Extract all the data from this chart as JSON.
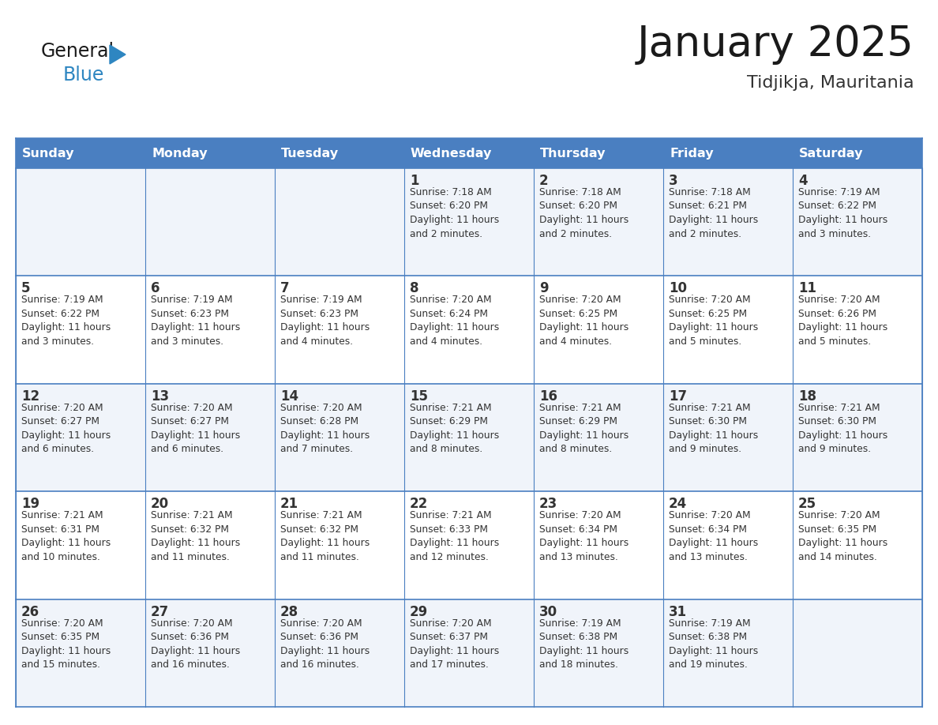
{
  "title": "January 2025",
  "subtitle": "Tidjikja, Mauritania",
  "header_color": "#4a7fc1",
  "header_text_color": "#FFFFFF",
  "cell_bg_odd": "#f0f4fa",
  "cell_bg_even": "#FFFFFF",
  "border_color": "#4a7fc1",
  "title_color": "#1a1a1a",
  "subtitle_color": "#333333",
  "text_color": "#333333",
  "day_names": [
    "Sunday",
    "Monday",
    "Tuesday",
    "Wednesday",
    "Thursday",
    "Friday",
    "Saturday"
  ],
  "weeks": [
    [
      {
        "day": "",
        "info": ""
      },
      {
        "day": "",
        "info": ""
      },
      {
        "day": "",
        "info": ""
      },
      {
        "day": "1",
        "info": "Sunrise: 7:18 AM\nSunset: 6:20 PM\nDaylight: 11 hours\nand 2 minutes."
      },
      {
        "day": "2",
        "info": "Sunrise: 7:18 AM\nSunset: 6:20 PM\nDaylight: 11 hours\nand 2 minutes."
      },
      {
        "day": "3",
        "info": "Sunrise: 7:18 AM\nSunset: 6:21 PM\nDaylight: 11 hours\nand 2 minutes."
      },
      {
        "day": "4",
        "info": "Sunrise: 7:19 AM\nSunset: 6:22 PM\nDaylight: 11 hours\nand 3 minutes."
      }
    ],
    [
      {
        "day": "5",
        "info": "Sunrise: 7:19 AM\nSunset: 6:22 PM\nDaylight: 11 hours\nand 3 minutes."
      },
      {
        "day": "6",
        "info": "Sunrise: 7:19 AM\nSunset: 6:23 PM\nDaylight: 11 hours\nand 3 minutes."
      },
      {
        "day": "7",
        "info": "Sunrise: 7:19 AM\nSunset: 6:23 PM\nDaylight: 11 hours\nand 4 minutes."
      },
      {
        "day": "8",
        "info": "Sunrise: 7:20 AM\nSunset: 6:24 PM\nDaylight: 11 hours\nand 4 minutes."
      },
      {
        "day": "9",
        "info": "Sunrise: 7:20 AM\nSunset: 6:25 PM\nDaylight: 11 hours\nand 4 minutes."
      },
      {
        "day": "10",
        "info": "Sunrise: 7:20 AM\nSunset: 6:25 PM\nDaylight: 11 hours\nand 5 minutes."
      },
      {
        "day": "11",
        "info": "Sunrise: 7:20 AM\nSunset: 6:26 PM\nDaylight: 11 hours\nand 5 minutes."
      }
    ],
    [
      {
        "day": "12",
        "info": "Sunrise: 7:20 AM\nSunset: 6:27 PM\nDaylight: 11 hours\nand 6 minutes."
      },
      {
        "day": "13",
        "info": "Sunrise: 7:20 AM\nSunset: 6:27 PM\nDaylight: 11 hours\nand 6 minutes."
      },
      {
        "day": "14",
        "info": "Sunrise: 7:20 AM\nSunset: 6:28 PM\nDaylight: 11 hours\nand 7 minutes."
      },
      {
        "day": "15",
        "info": "Sunrise: 7:21 AM\nSunset: 6:29 PM\nDaylight: 11 hours\nand 8 minutes."
      },
      {
        "day": "16",
        "info": "Sunrise: 7:21 AM\nSunset: 6:29 PM\nDaylight: 11 hours\nand 8 minutes."
      },
      {
        "day": "17",
        "info": "Sunrise: 7:21 AM\nSunset: 6:30 PM\nDaylight: 11 hours\nand 9 minutes."
      },
      {
        "day": "18",
        "info": "Sunrise: 7:21 AM\nSunset: 6:30 PM\nDaylight: 11 hours\nand 9 minutes."
      }
    ],
    [
      {
        "day": "19",
        "info": "Sunrise: 7:21 AM\nSunset: 6:31 PM\nDaylight: 11 hours\nand 10 minutes."
      },
      {
        "day": "20",
        "info": "Sunrise: 7:21 AM\nSunset: 6:32 PM\nDaylight: 11 hours\nand 11 minutes."
      },
      {
        "day": "21",
        "info": "Sunrise: 7:21 AM\nSunset: 6:32 PM\nDaylight: 11 hours\nand 11 minutes."
      },
      {
        "day": "22",
        "info": "Sunrise: 7:21 AM\nSunset: 6:33 PM\nDaylight: 11 hours\nand 12 minutes."
      },
      {
        "day": "23",
        "info": "Sunrise: 7:20 AM\nSunset: 6:34 PM\nDaylight: 11 hours\nand 13 minutes."
      },
      {
        "day": "24",
        "info": "Sunrise: 7:20 AM\nSunset: 6:34 PM\nDaylight: 11 hours\nand 13 minutes."
      },
      {
        "day": "25",
        "info": "Sunrise: 7:20 AM\nSunset: 6:35 PM\nDaylight: 11 hours\nand 14 minutes."
      }
    ],
    [
      {
        "day": "26",
        "info": "Sunrise: 7:20 AM\nSunset: 6:35 PM\nDaylight: 11 hours\nand 15 minutes."
      },
      {
        "day": "27",
        "info": "Sunrise: 7:20 AM\nSunset: 6:36 PM\nDaylight: 11 hours\nand 16 minutes."
      },
      {
        "day": "28",
        "info": "Sunrise: 7:20 AM\nSunset: 6:36 PM\nDaylight: 11 hours\nand 16 minutes."
      },
      {
        "day": "29",
        "info": "Sunrise: 7:20 AM\nSunset: 6:37 PM\nDaylight: 11 hours\nand 17 minutes."
      },
      {
        "day": "30",
        "info": "Sunrise: 7:19 AM\nSunset: 6:38 PM\nDaylight: 11 hours\nand 18 minutes."
      },
      {
        "day": "31",
        "info": "Sunrise: 7:19 AM\nSunset: 6:38 PM\nDaylight: 11 hours\nand 19 minutes."
      },
      {
        "day": "",
        "info": ""
      }
    ]
  ],
  "logo_general_color": "#1a1a1a",
  "logo_blue_color": "#2e86c1",
  "logo_triangle_color": "#2e86c1"
}
